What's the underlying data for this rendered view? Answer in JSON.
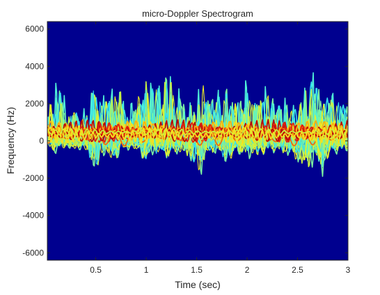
{
  "chart_data": {
    "type": "heatmap",
    "title": "micro-Doppler Spectrogram",
    "xlabel": "Time (sec)",
    "ylabel": "Frequency (Hz)",
    "xlim": [
      0.02,
      3.0
    ],
    "ylim": [
      -6400,
      6400
    ],
    "xticks": [
      0.5,
      1,
      1.5,
      2,
      2.5,
      3
    ],
    "xtick_labels": [
      "0.5",
      "1",
      "1.5",
      "2",
      "2.5",
      "3"
    ],
    "yticks": [
      -6000,
      -4000,
      -2000,
      0,
      2000,
      4000,
      6000
    ],
    "ytick_labels": [
      "-6000",
      "-4000",
      "-2000",
      "0",
      "2000",
      "4000",
      "6000"
    ],
    "colormap": "jet",
    "background_color": "#00008f",
    "grid": false,
    "legend": "none",
    "envelope": {
      "t": [
        0.02,
        0.1,
        0.2,
        0.3,
        0.4,
        0.45,
        0.5,
        0.55,
        0.6,
        0.7,
        0.75,
        0.8,
        0.9,
        1.0,
        1.05,
        1.1,
        1.15,
        1.2,
        1.3,
        1.4,
        1.5,
        1.55,
        1.6,
        1.7,
        1.8,
        1.9,
        2.0,
        2.1,
        2.2,
        2.3,
        2.4,
        2.5,
        2.6,
        2.7,
        2.75,
        2.8,
        2.9,
        3.0
      ],
      "upper": [
        1300,
        3800,
        2000,
        1700,
        1400,
        2900,
        3200,
        2500,
        2200,
        3400,
        2900,
        1800,
        2200,
        3800,
        3000,
        4300,
        2600,
        4100,
        2800,
        2400,
        2000,
        3400,
        2700,
        2500,
        3200,
        2000,
        3600,
        2400,
        2800,
        2300,
        2000,
        1900,
        3300,
        4100,
        2200,
        2600,
        2500,
        1800
      ],
      "lower": [
        -300,
        -700,
        -300,
        -400,
        -500,
        -1400,
        -1900,
        -900,
        -800,
        -1300,
        -500,
        -400,
        -600,
        -1300,
        -700,
        -900,
        -600,
        -1000,
        -700,
        -900,
        -1600,
        -2200,
        -700,
        -700,
        -1400,
        -700,
        -1100,
        -900,
        -700,
        -600,
        -800,
        -1200,
        -1900,
        -1300,
        -2300,
        -1000,
        -700,
        -500
      ]
    }
  }
}
